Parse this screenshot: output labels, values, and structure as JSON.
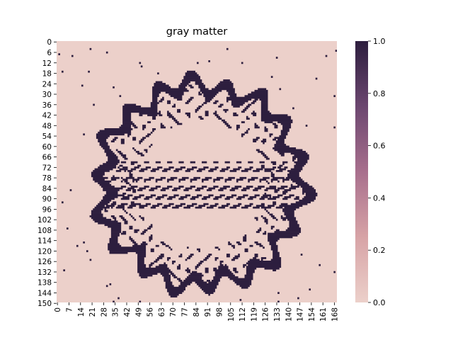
{
  "chart_data": {
    "type": "heatmap",
    "title": "gray matter",
    "xlabel": "",
    "ylabel": "",
    "x_range": [
      0,
      170
    ],
    "y_range": [
      0,
      150
    ],
    "x_ticks": [
      "0",
      "7",
      "14",
      "21",
      "28",
      "35",
      "42",
      "49",
      "56",
      "63",
      "70",
      "77",
      "84",
      "91",
      "98",
      "105",
      "112",
      "119",
      "126",
      "133",
      "140",
      "147",
      "154",
      "161",
      "168"
    ],
    "y_ticks": [
      "0",
      "6",
      "12",
      "18",
      "24",
      "30",
      "36",
      "42",
      "48",
      "54",
      "60",
      "66",
      "72",
      "78",
      "84",
      "90",
      "96",
      "102",
      "108",
      "114",
      "120",
      "126",
      "132",
      "138",
      "144",
      "150"
    ],
    "colorbar": {
      "min": 0.0,
      "max": 1.0,
      "ticks": [
        "0.0",
        "0.2",
        "0.4",
        "0.6",
        "0.8",
        "1.0"
      ],
      "low_color": "#ecd0ca",
      "high_color": "#2d1e3e"
    },
    "values": "binary gray-matter mask (0 = background, 1 = gray matter) shown as dark convoluted cortical ribbons within an elliptical brain section"
  }
}
